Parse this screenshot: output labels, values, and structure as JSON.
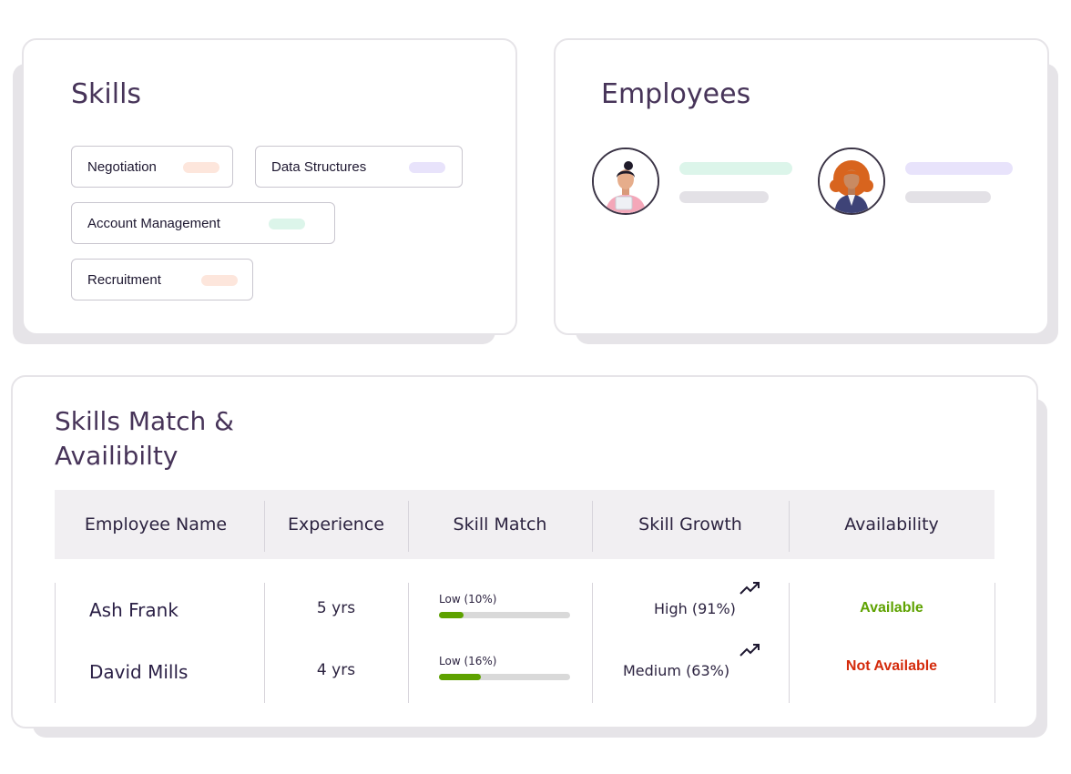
{
  "skills": {
    "title": "Skills",
    "chips": [
      {
        "label": "Negotiation",
        "color": "#fde6dc"
      },
      {
        "label": "Data Structures",
        "color": "#e8e3fb"
      },
      {
        "label": "Account Management",
        "color": "#dcf5ea"
      },
      {
        "label": "Recruitment",
        "color": "#fde6dc"
      }
    ]
  },
  "employees": {
    "title": "Employees",
    "people": [
      {
        "avatar_icon": "woman-with-bun-avatar-icon",
        "bar_color": "#dcf5ea"
      },
      {
        "avatar_icon": "woman-with-curly-hair-avatar-icon",
        "bar_color": "#e8e3fb"
      }
    ],
    "placeholder_color": "#e3e1e6"
  },
  "match": {
    "title_line1": "Skills Match &",
    "title_line2": "Availibilty",
    "columns": [
      "Employee Name",
      "Experience",
      "Skill Match",
      "Skill Growth",
      "Availability"
    ],
    "rows": [
      {
        "name": "Ash Frank",
        "experience": "5 yrs",
        "skill_match_label": "Low (10%)",
        "skill_match_fraction": 0.19,
        "growth": "High (91%)",
        "trend_icon": "trending-up-icon",
        "availability": "Available",
        "availability_color": "#5ea200"
      },
      {
        "name": "David Mills",
        "experience": "4 yrs",
        "skill_match_label": "Low (16%)",
        "skill_match_fraction": 0.32,
        "growth": "Medium (63%)",
        "trend_icon": "trending-up-icon",
        "availability": "Not Available",
        "availability_color": "#d42a0b"
      }
    ]
  }
}
